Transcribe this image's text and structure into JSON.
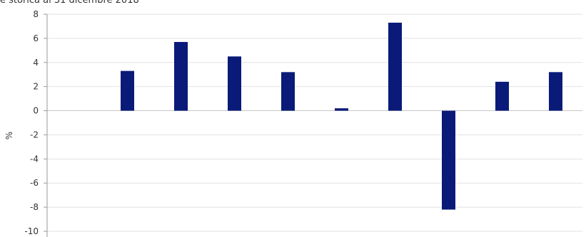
{
  "subtitle": "e storica al 31 dicembre 2018",
  "chart_data": {
    "type": "bar",
    "title": "",
    "subtitle": "e storica al 31 dicembre 2018",
    "xlabel": "",
    "ylabel": "%",
    "ylim": [
      -10,
      8
    ],
    "yticks": [
      8,
      6,
      4,
      2,
      0,
      -2,
      -4,
      -6,
      -8,
      -10
    ],
    "grid": true,
    "legend": "none",
    "bar_color": "#0a1a78",
    "categories": [
      "",
      "",
      "",
      "",
      "",
      "",
      "",
      "",
      "",
      ""
    ],
    "values": [
      null,
      3.3,
      5.7,
      4.5,
      3.2,
      0.2,
      7.3,
      -8.2,
      2.4,
      3.2
    ]
  }
}
